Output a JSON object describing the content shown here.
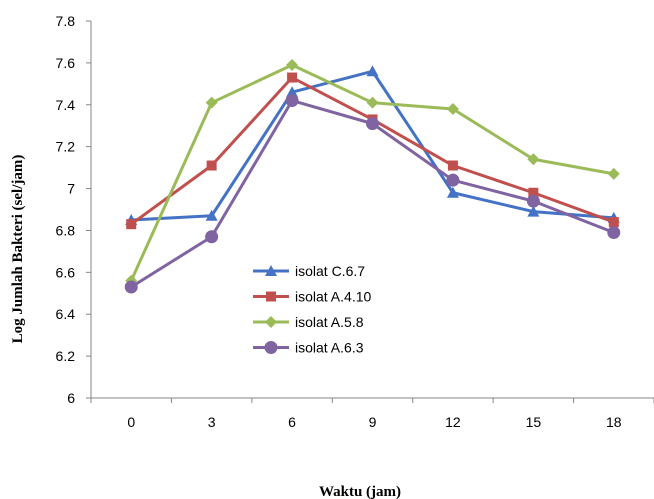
{
  "chart_data": {
    "type": "line",
    "xlabel": "Waktu (jam)",
    "ylabel": "Log Jumlah Bakteri (sel/jam)",
    "x": [
      0,
      3,
      6,
      9,
      12,
      15,
      18
    ],
    "ylim": [
      6,
      7.8
    ],
    "yticks": [
      "6",
      "6.2",
      "6.4",
      "6.6",
      "6.8",
      "7",
      "7.2",
      "7.4",
      "7.6",
      "7.8"
    ],
    "xticks": [
      "0",
      "3",
      "6",
      "9",
      "12",
      "15",
      "18"
    ],
    "grid": false,
    "legend_position": "lower-center",
    "series": [
      {
        "name": "isolat C.6.7",
        "color": "#4472C4",
        "marker": "triangle",
        "values": [
          6.85,
          6.87,
          7.46,
          7.56,
          6.98,
          6.89,
          6.86
        ]
      },
      {
        "name": "isolat A.4.10",
        "color": "#C0504D",
        "marker": "square",
        "values": [
          6.83,
          7.11,
          7.53,
          7.33,
          7.11,
          6.98,
          6.84
        ]
      },
      {
        "name": "isolat A.5.8",
        "color": "#9BBB59",
        "marker": "diamond",
        "values": [
          6.56,
          7.41,
          7.59,
          7.41,
          7.38,
          7.14,
          7.07
        ]
      },
      {
        "name": "isolat A.6.3",
        "color": "#8064A2",
        "marker": "circle",
        "values": [
          6.53,
          6.77,
          7.42,
          7.31,
          7.04,
          6.94,
          6.79
        ]
      }
    ]
  }
}
